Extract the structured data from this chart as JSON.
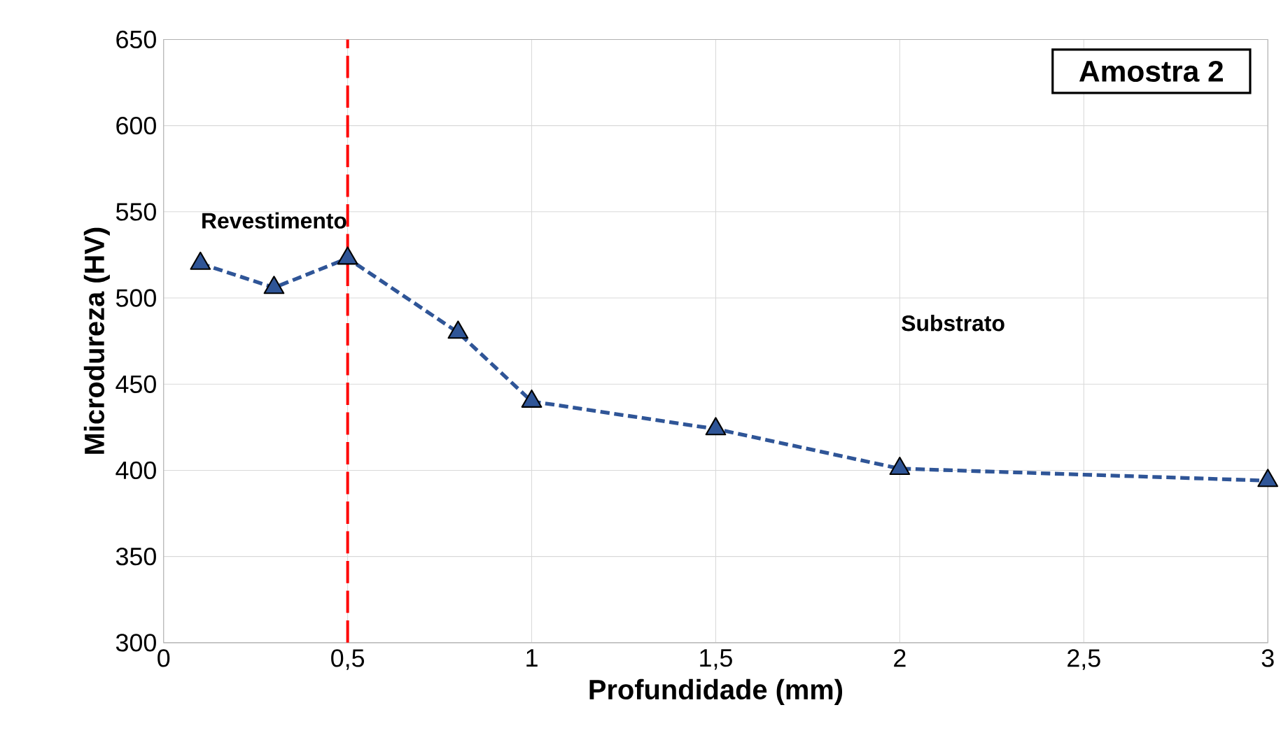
{
  "chart_data": {
    "type": "line",
    "title": "Amostra 2",
    "xlabel": "Profundidade (mm)",
    "ylabel": "Microdureza (HV)",
    "x": [
      0.1,
      0.3,
      0.5,
      0.8,
      1,
      1.5,
      2,
      3
    ],
    "series": [
      {
        "color": "#2f5597",
        "values": [
          520,
          506,
          523,
          480,
          440,
          424,
          401,
          394
        ]
      }
    ],
    "xlim": [
      0,
      3
    ],
    "ylim": [
      300,
      650
    ],
    "xticks": [
      0,
      {
        "value": 0.5,
        "label": "0,5"
      },
      1,
      {
        "value": 1.5,
        "label": "1,5"
      },
      2,
      {
        "value": 2.5,
        "label": "2,5"
      },
      3
    ],
    "yticks": [
      300,
      350,
      400,
      450,
      500,
      550,
      600,
      650
    ],
    "grid": true,
    "marker": "triangle",
    "line_style": "dashed",
    "ref_lines": [
      {
        "axis": "x",
        "value": 0.5,
        "color": "#ff0000",
        "line_style": "dashed"
      }
    ],
    "annotations": [
      "Revestimento",
      "Substrato"
    ]
  }
}
